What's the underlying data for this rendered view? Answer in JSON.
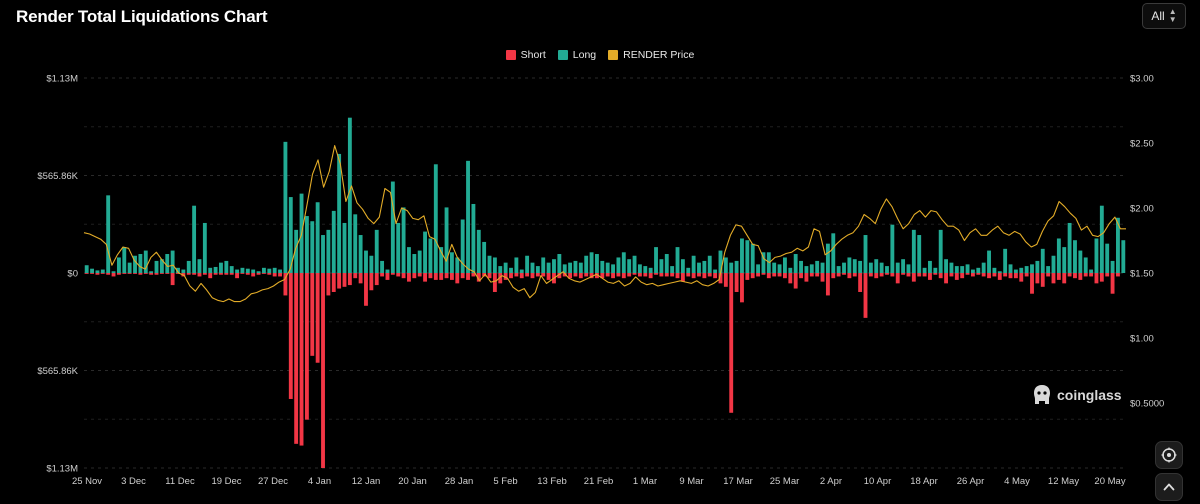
{
  "header": {
    "title": "Render Total Liquidations Chart"
  },
  "range_select": {
    "value": "All"
  },
  "watermark": {
    "text": "coinglass"
  },
  "colors": {
    "short": "#f23645",
    "long": "#22ab94",
    "price": "#e3ac28",
    "grid": "#2a2a2a"
  },
  "icons": {
    "range_chevron": "chevron-up-down-icon",
    "screenshot": "camera-icon",
    "scroll_top": "chevron-up-icon",
    "watermark": "coinglass-logo-icon"
  },
  "chart_data": {
    "type": "bar",
    "title": "Render Total Liquidations Chart",
    "legend": {
      "placement": "top-center",
      "items": [
        "Short",
        "Long",
        "RENDER Price"
      ]
    },
    "grid": true,
    "x_tick_labels": [
      "25 Nov",
      "3 Dec",
      "11 Dec",
      "19 Dec",
      "27 Dec",
      "4 Jan",
      "12 Jan",
      "20 Jan",
      "28 Jan",
      "5 Feb",
      "13 Feb",
      "21 Feb",
      "1 Mar",
      "9 Mar",
      "17 Mar",
      "25 Mar",
      "2 Apr",
      "10 Apr",
      "18 Apr",
      "26 Apr",
      "4 May",
      "12 May",
      "20 May"
    ],
    "y_left": {
      "ticks": [
        "$1.13M",
        "$565.86K",
        "$0",
        "$565.86K",
        "$1.13M"
      ],
      "range": [
        -1130000,
        1130000
      ]
    },
    "y_right": {
      "ticks": [
        "$3.00",
        "$2.50",
        "$2.00",
        "$1.50",
        "$1.00",
        "$0.5000"
      ],
      "range": [
        0.0,
        3.0
      ]
    },
    "series": [
      {
        "name": "Long",
        "values": [
          45000,
          25000,
          15000,
          20000,
          450000,
          10000,
          90000,
          150000,
          60000,
          100000,
          110000,
          130000,
          10000,
          70000,
          80000,
          110000,
          130000,
          30000,
          20000,
          70000,
          390000,
          80000,
          290000,
          30000,
          35000,
          60000,
          70000,
          40000,
          20000,
          30000,
          25000,
          20000,
          10000,
          30000,
          25000,
          30000,
          20000,
          760000,
          440000,
          250000,
          460000,
          330000,
          300000,
          410000,
          220000,
          250000,
          360000,
          690000,
          290000,
          900000,
          340000,
          220000,
          130000,
          100000,
          250000,
          70000,
          20000,
          530000,
          290000,
          380000,
          150000,
          110000,
          130000,
          240000,
          200000,
          630000,
          150000,
          380000,
          120000,
          90000,
          310000,
          650000,
          400000,
          250000,
          180000,
          100000,
          90000,
          40000,
          60000,
          30000,
          90000,
          20000,
          100000,
          60000,
          40000,
          90000,
          60000,
          80000,
          110000,
          50000,
          60000,
          70000,
          60000,
          100000,
          120000,
          110000,
          70000,
          60000,
          50000,
          90000,
          120000,
          80000,
          100000,
          50000,
          40000,
          30000,
          150000,
          80000,
          110000,
          40000,
          150000,
          80000,
          30000,
          100000,
          60000,
          70000,
          100000,
          20000,
          130000,
          90000,
          60000,
          70000,
          200000,
          190000,
          170000,
          50000,
          120000,
          120000,
          60000,
          50000,
          90000,
          30000,
          110000,
          70000,
          40000,
          50000,
          70000,
          60000,
          170000,
          230000,
          40000,
          60000,
          90000,
          80000,
          70000,
          220000,
          60000,
          80000,
          60000,
          40000,
          280000,
          60000,
          80000,
          50000,
          250000,
          220000,
          30000,
          70000,
          30000,
          250000,
          80000,
          60000,
          40000,
          40000,
          50000,
          20000,
          30000,
          60000,
          130000,
          30000,
          10000,
          140000,
          50000,
          20000,
          30000,
          40000,
          50000,
          70000,
          140000,
          40000,
          100000,
          200000,
          150000,
          290000,
          190000,
          130000,
          90000,
          20000,
          200000,
          390000,
          170000,
          70000,
          320000,
          190000
        ]
      },
      {
        "name": "Short",
        "values": [
          -5000,
          -5000,
          -10000,
          -5000,
          -10000,
          -20000,
          -10000,
          -5000,
          -5000,
          -5000,
          -10000,
          -5000,
          -10000,
          -10000,
          -5000,
          -5000,
          -70000,
          -5000,
          -20000,
          -10000,
          -10000,
          -20000,
          -10000,
          -30000,
          -10000,
          -10000,
          -10000,
          -10000,
          -30000,
          -5000,
          -10000,
          -20000,
          -10000,
          -5000,
          -10000,
          -20000,
          -20000,
          -130000,
          -730000,
          -990000,
          -1000000,
          -850000,
          -480000,
          -520000,
          -1130000,
          -130000,
          -110000,
          -90000,
          -80000,
          -70000,
          -30000,
          -60000,
          -190000,
          -100000,
          -70000,
          -20000,
          -40000,
          -10000,
          -20000,
          -30000,
          -50000,
          -30000,
          -20000,
          -50000,
          -30000,
          -40000,
          -40000,
          -30000,
          -40000,
          -60000,
          -30000,
          -40000,
          -20000,
          -50000,
          -20000,
          -30000,
          -110000,
          -60000,
          -40000,
          -30000,
          -20000,
          -30000,
          -20000,
          -30000,
          -20000,
          -20000,
          -40000,
          -60000,
          -30000,
          -20000,
          -30000,
          -20000,
          -30000,
          -20000,
          -30000,
          -30000,
          -30000,
          -20000,
          -30000,
          -20000,
          -30000,
          -20000,
          -10000,
          -20000,
          -20000,
          -30000,
          -10000,
          -20000,
          -20000,
          -20000,
          -30000,
          -50000,
          -20000,
          -30000,
          -20000,
          -30000,
          -20000,
          -30000,
          -60000,
          -80000,
          -810000,
          -110000,
          -170000,
          -40000,
          -30000,
          -20000,
          -10000,
          -30000,
          -20000,
          -20000,
          -30000,
          -60000,
          -90000,
          -30000,
          -50000,
          -20000,
          -20000,
          -50000,
          -130000,
          -30000,
          -20000,
          -10000,
          -30000,
          -20000,
          -110000,
          -260000,
          -20000,
          -30000,
          -20000,
          -10000,
          -20000,
          -60000,
          -10000,
          -20000,
          -50000,
          -20000,
          -20000,
          -40000,
          -10000,
          -30000,
          -60000,
          -20000,
          -40000,
          -30000,
          -10000,
          -20000,
          -10000,
          -20000,
          -30000,
          -20000,
          -40000,
          -20000,
          -30000,
          -30000,
          -50000,
          -20000,
          -120000,
          -60000,
          -80000,
          -20000,
          -60000,
          -40000,
          -60000,
          -20000,
          -30000,
          -40000,
          -20000,
          -20000,
          -60000,
          -50000,
          -20000,
          -120000,
          -20000
        ]
      },
      {
        "name": "RENDER Price",
        "values": [
          1.81,
          1.8,
          1.78,
          1.76,
          1.72,
          1.56,
          1.64,
          1.7,
          1.69,
          1.6,
          1.55,
          1.53,
          1.62,
          1.66,
          1.6,
          1.55,
          1.56,
          1.5,
          1.48,
          1.4,
          1.36,
          1.42,
          1.37,
          1.31,
          1.29,
          1.28,
          1.3,
          1.28,
          1.28,
          1.3,
          1.34,
          1.35,
          1.37,
          1.38,
          1.4,
          1.43,
          1.45,
          1.53,
          1.69,
          1.79,
          2.02,
          2.26,
          2.37,
          2.16,
          2.28,
          2.48,
          2.34,
          2.05,
          2.17,
          2.04,
          1.99,
          1.92,
          1.88,
          1.93,
          2.15,
          2.12,
          1.88,
          2.0,
          1.98,
          1.92,
          1.91,
          1.94,
          1.78,
          1.76,
          1.67,
          1.59,
          1.72,
          1.62,
          1.57,
          1.53,
          1.51,
          1.44,
          1.49,
          1.43,
          1.44,
          1.48,
          1.46,
          1.39,
          1.36,
          1.38,
          1.31,
          1.35,
          1.48,
          1.42,
          1.45,
          1.48,
          1.51,
          1.46,
          1.44,
          1.43,
          1.45,
          1.47,
          1.49,
          1.46,
          1.43,
          1.42,
          1.44,
          1.4,
          1.42,
          1.47,
          1.43,
          1.41,
          1.42,
          1.4,
          1.41,
          1.42,
          1.43,
          1.44,
          1.43,
          1.42,
          1.44,
          1.41,
          1.4,
          1.42,
          1.45,
          1.66,
          1.79,
          1.87,
          1.86,
          1.79,
          1.72,
          1.71,
          1.61,
          1.58,
          1.62,
          1.63,
          1.65,
          1.66,
          1.69,
          1.67,
          1.7,
          1.84,
          1.82,
          1.64,
          1.67,
          1.72,
          1.76,
          1.79,
          1.81,
          1.86,
          1.95,
          1.92,
          1.88,
          1.99,
          2.07,
          2.01,
          1.92,
          1.84,
          1.88,
          1.95,
          1.98,
          1.93,
          1.98,
          1.97,
          1.91,
          1.86,
          1.86,
          1.83,
          1.75,
          1.81,
          1.84,
          1.79,
          1.79,
          1.83,
          1.86,
          1.81,
          1.79,
          1.82,
          1.8,
          1.74,
          1.7,
          1.72,
          1.82,
          1.9,
          1.94,
          2.05,
          2.01,
          1.96,
          1.92,
          1.83,
          1.86,
          1.79,
          1.78,
          1.81,
          1.88,
          1.93,
          1.84,
          1.84
        ]
      }
    ]
  }
}
